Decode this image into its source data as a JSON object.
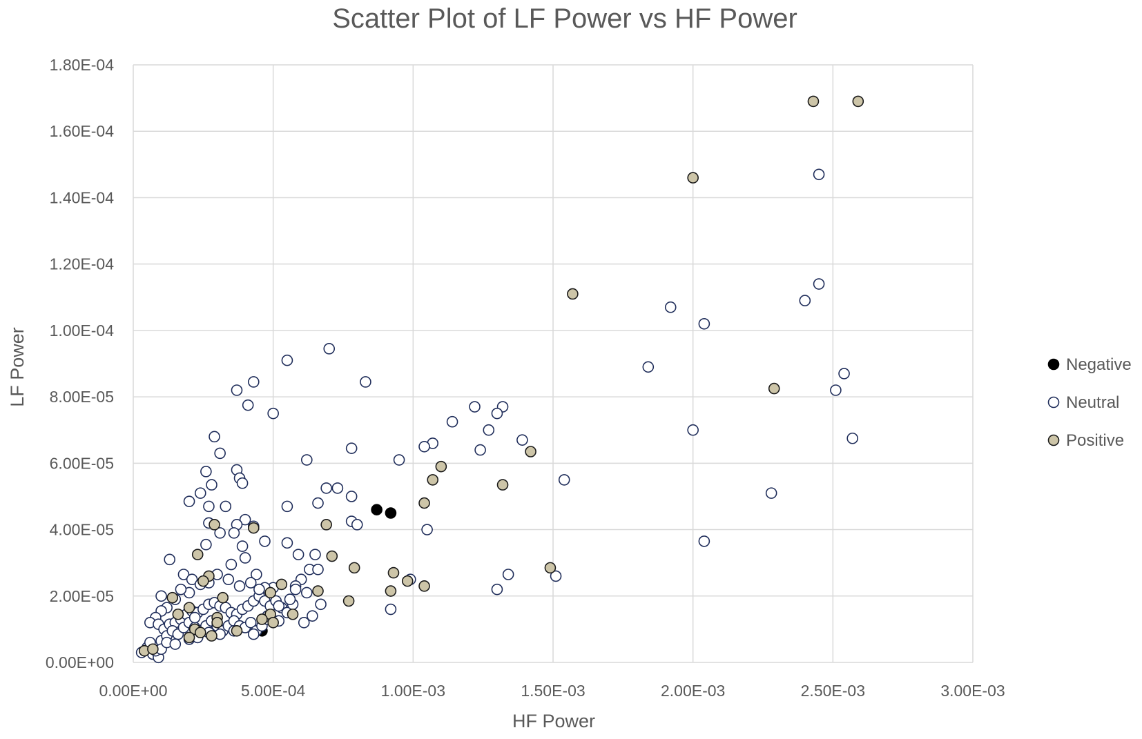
{
  "chart_data": {
    "type": "scatter",
    "title": "Scatter Plot of LF Power vs HF Power",
    "xlabel": "HF Power",
    "ylabel": "LF Power",
    "xlim": [
      0,
      0.003
    ],
    "ylim": [
      0,
      0.00018
    ],
    "x_ticks": [
      0,
      0.0005,
      0.001,
      0.0015,
      0.002,
      0.0025,
      0.003
    ],
    "y_ticks": [
      0,
      2e-05,
      4e-05,
      6e-05,
      8e-05,
      0.0001,
      0.00012,
      0.00014,
      0.00016,
      0.00018
    ],
    "x_tick_labels": [
      "0.00E+00",
      "5.00E-04",
      "1.00E-03",
      "1.50E-03",
      "2.00E-03",
      "2.50E-03",
      "3.00E-03"
    ],
    "y_tick_labels": [
      "0.00E+00",
      "2.00E-05",
      "4.00E-05",
      "6.00E-05",
      "8.00E-05",
      "1.00E-04",
      "1.20E-04",
      "1.40E-04",
      "1.60E-04",
      "1.80E-04"
    ],
    "grid": true,
    "legend_position": "right",
    "series": [
      {
        "name": "Negative",
        "color": "#000000",
        "edge": "#000000",
        "points": [
          [
            0.00087,
            4.6e-05
          ],
          [
            0.00092,
            4.5e-05
          ],
          [
            0.00046,
            9.5e-06
          ]
        ]
      },
      {
        "name": "Neutral",
        "color": "#ffffff",
        "edge": "#1f2d5a",
        "points": [
          [
            0.00245,
            0.000147
          ],
          [
            0.00245,
            0.000114
          ],
          [
            0.0024,
            0.000109
          ],
          [
            0.00192,
            0.000107
          ],
          [
            0.00204,
            0.000102
          ],
          [
            0.00184,
            8.9e-05
          ],
          [
            0.00254,
            8.7e-05
          ],
          [
            0.00251,
            8.2e-05
          ],
          [
            0.002,
            7e-05
          ],
          [
            0.00257,
            6.75e-05
          ],
          [
            0.00228,
            5.1e-05
          ],
          [
            0.00204,
            3.65e-05
          ],
          [
            0.00154,
            5.5e-05
          ],
          [
            0.00151,
            2.6e-05
          ],
          [
            0.00134,
            2.65e-05
          ],
          [
            0.0013,
            2.2e-05
          ],
          [
            0.00132,
            7.7e-05
          ],
          [
            0.00122,
            7.7e-05
          ],
          [
            0.0013,
            7.5e-05
          ],
          [
            0.00114,
            7.25e-05
          ],
          [
            0.00127,
            7e-05
          ],
          [
            0.00139,
            6.7e-05
          ],
          [
            0.00107,
            6.6e-05
          ],
          [
            0.00104,
            6.5e-05
          ],
          [
            0.00124,
            6.4e-05
          ],
          [
            0.00095,
            6.1e-05
          ],
          [
            0.00105,
            4e-05
          ],
          [
            0.00099,
            2.5e-05
          ],
          [
            0.00092,
            1.6e-05
          ],
          [
            0.00083,
            8.45e-05
          ],
          [
            0.0007,
            9.45e-05
          ],
          [
            0.00055,
            9.1e-05
          ],
          [
            0.00043,
            8.45e-05
          ],
          [
            0.00037,
            8.2e-05
          ],
          [
            0.00041,
            7.75e-05
          ],
          [
            0.0005,
            7.5e-05
          ],
          [
            0.00078,
            6.45e-05
          ],
          [
            0.00062,
            6.1e-05
          ],
          [
            0.00078,
            5e-05
          ],
          [
            0.00069,
            5.25e-05
          ],
          [
            0.00073,
            5.25e-05
          ],
          [
            0.00066,
            4.8e-05
          ],
          [
            0.00055,
            4.7e-05
          ],
          [
            0.00078,
            4.25e-05
          ],
          [
            0.0008,
            4.15e-05
          ],
          [
            0.00029,
            6.8e-05
          ],
          [
            0.00031,
            6.3e-05
          ],
          [
            0.00037,
            5.8e-05
          ],
          [
            0.00038,
            5.55e-05
          ],
          [
            0.00039,
            5.4e-05
          ],
          [
            0.00026,
            5.75e-05
          ],
          [
            0.00028,
            5.35e-05
          ],
          [
            0.00024,
            5.1e-05
          ],
          [
            0.0002,
            4.85e-05
          ],
          [
            0.00027,
            4.7e-05
          ],
          [
            0.00033,
            4.7e-05
          ],
          [
            0.0004,
            4.3e-05
          ],
          [
            0.00043,
            4.1e-05
          ],
          [
            0.00037,
            4.15e-05
          ],
          [
            0.00027,
            4.2e-05
          ],
          [
            0.00031,
            3.9e-05
          ],
          [
            0.00026,
            3.55e-05
          ],
          [
            0.00036,
            3.9e-05
          ],
          [
            0.00039,
            3.5e-05
          ],
          [
            0.00047,
            3.65e-05
          ],
          [
            0.00055,
            3.6e-05
          ],
          [
            0.00059,
            3.25e-05
          ],
          [
            0.00065,
            3.25e-05
          ],
          [
            0.0006,
            2.5e-05
          ],
          [
            0.00063,
            2.8e-05
          ],
          [
            0.00066,
            2.8e-05
          ],
          [
            0.00062,
            2.1e-05
          ],
          [
            0.00058,
            2.3e-05
          ],
          [
            0.00067,
            1.75e-05
          ],
          [
            0.00061,
            1.2e-05
          ],
          [
            0.00064,
            1.4e-05
          ],
          [
            0.00013,
            3.1e-05
          ],
          [
            0.00018,
            2.65e-05
          ],
          [
            0.00021,
            2.5e-05
          ],
          [
            0.00044,
            2.65e-05
          ],
          [
            0.0004,
            3.15e-05
          ],
          [
            0.00035,
            2.95e-05
          ],
          [
            0.00034,
            2.5e-05
          ],
          [
            0.00038,
            2.3e-05
          ],
          [
            0.00042,
            2.4e-05
          ],
          [
            0.0003,
            2.65e-05
          ],
          [
            0.00027,
            2.4e-05
          ],
          [
            0.00024,
            2.35e-05
          ],
          [
            0.0002,
            2.1e-05
          ],
          [
            0.00017,
            2.2e-05
          ],
          [
            0.00015,
            1.9e-05
          ],
          [
            0.00012,
            1.65e-05
          ],
          [
            0.0001,
            1.55e-05
          ],
          [
            8e-05,
            1.35e-05
          ],
          [
            6e-05,
            1.2e-05
          ],
          [
            9e-05,
            1.15e-05
          ],
          [
            0.00011,
            1e-05
          ],
          [
            0.00013,
            1.15e-05
          ],
          [
            0.00015,
            1.2e-05
          ],
          [
            0.00017,
            1.3e-05
          ],
          [
            0.00019,
            1.45e-05
          ],
          [
            0.00021,
            1.55e-05
          ],
          [
            0.00023,
            1.5e-05
          ],
          [
            0.00025,
            1.6e-05
          ],
          [
            0.00027,
            1.75e-05
          ],
          [
            0.00029,
            1.8e-05
          ],
          [
            0.00031,
            1.7e-05
          ],
          [
            0.00033,
            1.65e-05
          ],
          [
            0.00035,
            1.5e-05
          ],
          [
            0.00037,
            1.45e-05
          ],
          [
            0.00039,
            1.6e-05
          ],
          [
            0.00041,
            1.7e-05
          ],
          [
            0.00043,
            1.85e-05
          ],
          [
            0.00045,
            2e-05
          ],
          [
            0.00047,
            1.85e-05
          ],
          [
            0.00049,
            1.7e-05
          ],
          [
            0.00051,
            1.85e-05
          ],
          [
            0.00053,
            1.65e-05
          ],
          [
            0.00055,
            1.5e-05
          ],
          [
            0.00057,
            1.75e-05
          ],
          [
            0.0001,
            6.5e-06
          ],
          [
            0.00012,
            8e-06
          ],
          [
            0.00014,
            9.5e-06
          ],
          [
            0.00016,
            8.5e-06
          ],
          [
            0.00018,
            1.05e-05
          ],
          [
            0.0002,
            1.2e-05
          ],
          [
            0.00022,
            1.05e-05
          ],
          [
            0.00024,
            9.5e-06
          ],
          [
            0.00026,
            1.1e-05
          ],
          [
            0.00028,
            1.25e-05
          ],
          [
            0.0003,
            1.1e-05
          ],
          [
            0.00032,
            9.5e-06
          ],
          [
            0.00034,
            1.1e-05
          ],
          [
            0.00036,
            1.25e-05
          ],
          [
            0.00038,
            1.1e-05
          ],
          [
            0.0004,
            1.05e-05
          ],
          [
            0.00042,
            1.2e-05
          ],
          [
            0.00044,
            9.5e-06
          ],
          [
            0.00046,
            1.1e-05
          ],
          [
            0.00048,
            1.3e-05
          ],
          [
            5e-05,
            4.5e-06
          ],
          [
            7e-05,
            2.5e-06
          ],
          [
            9e-05,
            1.5e-06
          ],
          [
            8e-05,
            3.5e-06
          ],
          [
            0.0001,
            4e-06
          ],
          [
            3e-05,
            3e-06
          ],
          [
            6e-05,
            6e-06
          ],
          [
            0.00012,
            6e-06
          ],
          [
            0.00015,
            5.5e-06
          ],
          [
            0.0002,
            7e-06
          ],
          [
            0.00023,
            7.5e-06
          ],
          [
            0.00027,
            9e-06
          ],
          [
            0.00031,
            8.5e-06
          ],
          [
            0.00036,
            9.5e-06
          ],
          [
            0.00043,
            8.5e-06
          ],
          [
            0.00052,
            1.7e-05
          ],
          [
            0.0005,
            2.25e-05
          ],
          [
            0.00047,
            2.25e-05
          ],
          [
            0.00045,
            2.2e-05
          ],
          [
            0.00048,
            1.4e-05
          ],
          [
            0.00052,
            1.25e-05
          ],
          [
            0.00056,
            1.9e-05
          ],
          [
            0.00058,
            2.2e-05
          ],
          [
            0.0001,
            2e-05
          ],
          [
            0.00022,
            1.35e-05
          ]
        ]
      },
      {
        "name": "Positive",
        "color": "#cdc5a8",
        "edge": "#1a1a1a",
        "points": [
          [
            0.00243,
            0.000169
          ],
          [
            0.00259,
            0.000169
          ],
          [
            0.002,
            0.000146
          ],
          [
            0.00157,
            0.000111
          ],
          [
            0.00229,
            8.25e-05
          ],
          [
            0.00142,
            6.35e-05
          ],
          [
            0.0011,
            5.9e-05
          ],
          [
            0.00107,
            5.5e-05
          ],
          [
            0.00132,
            5.35e-05
          ],
          [
            0.00104,
            4.8e-05
          ],
          [
            0.00069,
            4.15e-05
          ],
          [
            0.00029,
            4.15e-05
          ],
          [
            0.00043,
            4.05e-05
          ],
          [
            0.00023,
            3.25e-05
          ],
          [
            0.00071,
            3.2e-05
          ],
          [
            0.00079,
            2.85e-05
          ],
          [
            0.00149,
            2.85e-05
          ],
          [
            0.00093,
            2.7e-05
          ],
          [
            0.00098,
            2.45e-05
          ],
          [
            0.00104,
            2.3e-05
          ],
          [
            0.00092,
            2.15e-05
          ],
          [
            0.00077,
            1.85e-05
          ],
          [
            0.00066,
            2.15e-05
          ],
          [
            0.00053,
            2.35e-05
          ],
          [
            0.00049,
            2.1e-05
          ],
          [
            0.00032,
            1.95e-05
          ],
          [
            0.00027,
            2.6e-05
          ],
          [
            0.00025,
            2.45e-05
          ],
          [
            0.00014,
            1.95e-05
          ],
          [
            0.0002,
            1.65e-05
          ],
          [
            0.00016,
            1.45e-05
          ],
          [
            0.00049,
            1.45e-05
          ],
          [
            0.00057,
            1.45e-05
          ],
          [
            0.00046,
            1.3e-05
          ],
          [
            0.0005,
            1.2e-05
          ],
          [
            0.0003,
            1.35e-05
          ],
          [
            0.0003,
            1.2e-05
          ],
          [
            0.00022,
            1e-05
          ],
          [
            0.00024,
            9e-06
          ],
          [
            0.00028,
            8e-06
          ],
          [
            0.0002,
            7.5e-06
          ],
          [
            0.00037,
            9.5e-06
          ],
          [
            4e-05,
            3.5e-06
          ],
          [
            7e-05,
            4e-06
          ]
        ]
      }
    ]
  }
}
